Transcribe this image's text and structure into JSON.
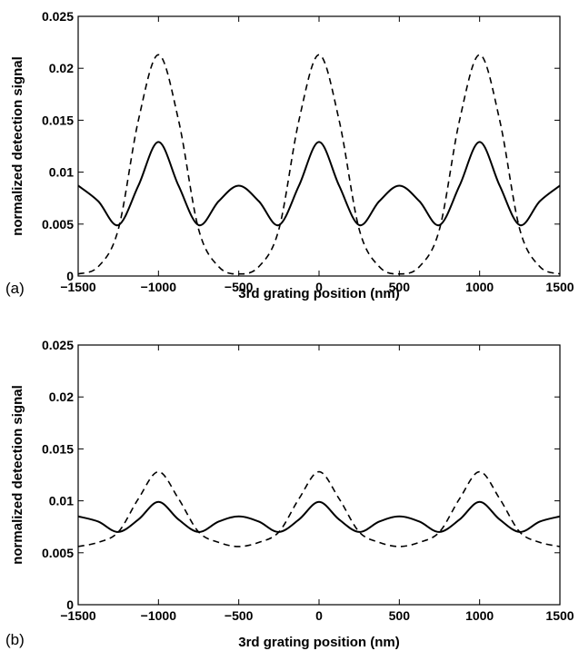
{
  "chart_data": [
    {
      "type": "line",
      "panel_label": "(a)",
      "xlabel": "3rd grating position (nm)",
      "ylabel": "normalized detection signal",
      "xlim": [
        -1500,
        1500
      ],
      "ylim": [
        0,
        0.025
      ],
      "x_ticks": [
        "−1500",
        "−1000",
        "−500",
        "0",
        "500",
        "1000",
        "1500"
      ],
      "y_ticks": [
        "0",
        "0.005",
        "0.01",
        "0.015",
        "0.02",
        "0.025"
      ],
      "grid": false,
      "series": [
        {
          "style": "solid",
          "x": [
            -1500,
            -1375,
            -1250,
            -1125,
            -1000,
            -875,
            -750,
            -625,
            -500,
            -375,
            -250,
            -125,
            0,
            125,
            250,
            375,
            500,
            625,
            750,
            875,
            1000,
            1125,
            1250,
            1375,
            1500
          ],
          "y": [
            0.0087,
            0.0072,
            0.0049,
            0.0087,
            0.0129,
            0.0087,
            0.0049,
            0.0072,
            0.0087,
            0.0072,
            0.0049,
            0.0087,
            0.0129,
            0.0087,
            0.0049,
            0.0072,
            0.0087,
            0.0072,
            0.0049,
            0.0087,
            0.0129,
            0.0087,
            0.0049,
            0.0072,
            0.0087
          ]
        },
        {
          "style": "dashed",
          "x": [
            -1500,
            -1375,
            -1250,
            -1125,
            -1000,
            -875,
            -750,
            -625,
            -500,
            -375,
            -250,
            -125,
            0,
            125,
            250,
            375,
            500,
            625,
            750,
            875,
            1000,
            1125,
            1250,
            1375,
            1500
          ],
          "y": [
            0.0002,
            0.0009,
            0.0045,
            0.015,
            0.0213,
            0.015,
            0.0045,
            0.0009,
            0.0002,
            0.0009,
            0.0045,
            0.015,
            0.0213,
            0.015,
            0.0045,
            0.0009,
            0.0002,
            0.0009,
            0.0045,
            0.015,
            0.0213,
            0.015,
            0.0045,
            0.0009,
            0.0002
          ]
        }
      ]
    },
    {
      "type": "line",
      "panel_label": "(b)",
      "xlabel": "3rd grating position (nm)",
      "ylabel": "normalized detection signal",
      "xlim": [
        -1500,
        1500
      ],
      "ylim": [
        0,
        0.025
      ],
      "x_ticks": [
        "−1500",
        "−1000",
        "−500",
        "0",
        "500",
        "1000",
        "1500"
      ],
      "y_ticks": [
        "0",
        "0.005",
        "0.01",
        "0.015",
        "0.02",
        "0.025"
      ],
      "grid": false,
      "series": [
        {
          "style": "solid",
          "x": [
            -1500,
            -1375,
            -1250,
            -1125,
            -1000,
            -875,
            -750,
            -625,
            -500,
            -375,
            -250,
            -125,
            0,
            125,
            250,
            375,
            500,
            625,
            750,
            875,
            1000,
            1125,
            1250,
            1375,
            1500
          ],
          "y": [
            0.0085,
            0.008,
            0.007,
            0.0082,
            0.0099,
            0.0082,
            0.007,
            0.008,
            0.0085,
            0.008,
            0.007,
            0.0082,
            0.0099,
            0.0082,
            0.007,
            0.008,
            0.0085,
            0.008,
            0.007,
            0.0082,
            0.0099,
            0.0082,
            0.007,
            0.008,
            0.0085
          ]
        },
        {
          "style": "dashed",
          "x": [
            -1500,
            -1375,
            -1250,
            -1125,
            -1000,
            -875,
            -750,
            -625,
            -500,
            -375,
            -250,
            -125,
            0,
            125,
            250,
            375,
            500,
            625,
            750,
            875,
            1000,
            1125,
            1250,
            1375,
            1500
          ],
          "y": [
            0.0056,
            0.006,
            0.007,
            0.0102,
            0.0128,
            0.0102,
            0.007,
            0.006,
            0.0056,
            0.006,
            0.007,
            0.0102,
            0.0128,
            0.0102,
            0.007,
            0.006,
            0.0056,
            0.006,
            0.007,
            0.0102,
            0.0128,
            0.0102,
            0.007,
            0.006,
            0.0056
          ]
        }
      ]
    }
  ]
}
